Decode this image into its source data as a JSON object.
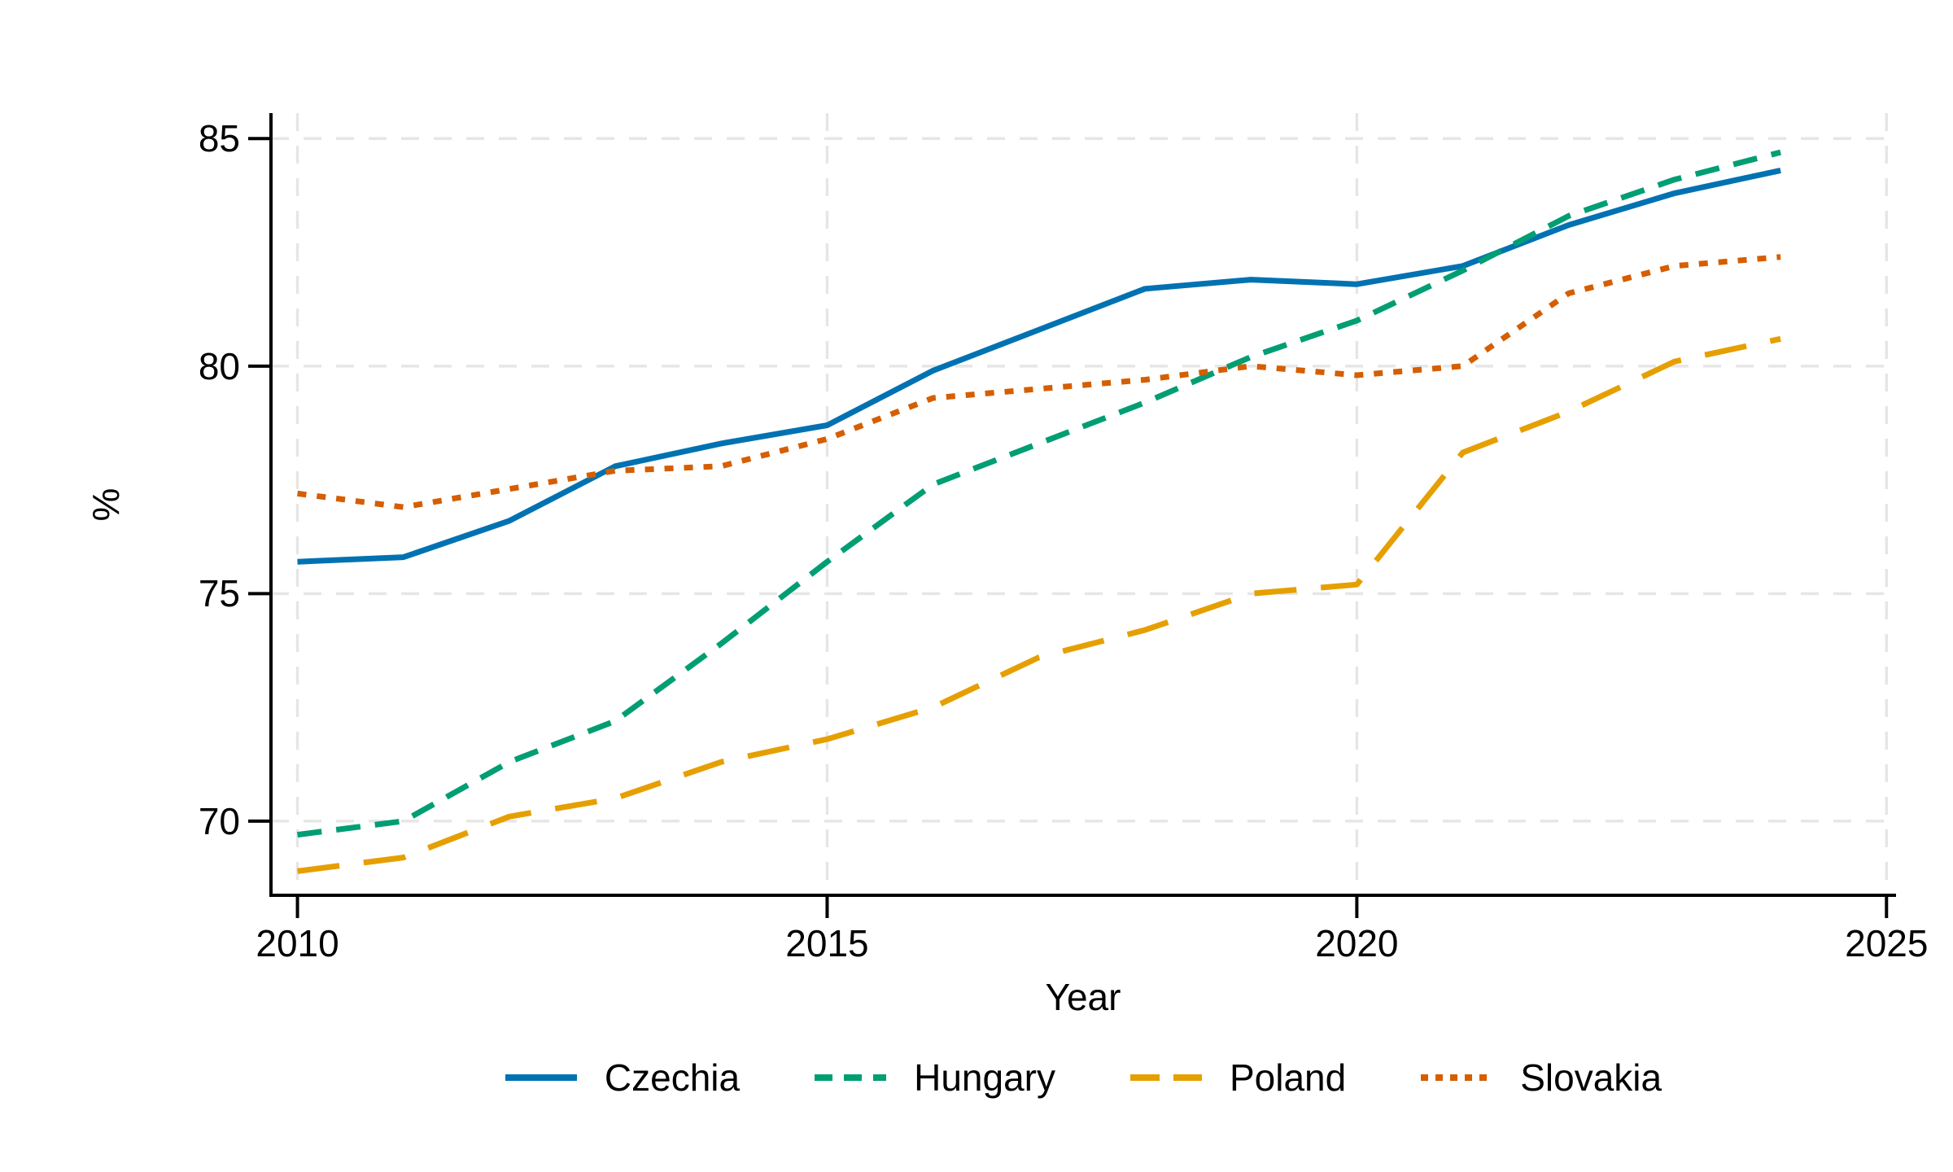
{
  "figure": {
    "background": "#ffffff",
    "axis_color": "#000000",
    "text_color": "#000000"
  },
  "chart_data": {
    "type": "line",
    "title": "",
    "xlabel": "Year",
    "ylabel": "%",
    "grid": {
      "show": true,
      "style": "dashed",
      "color": "#e6e6e6"
    },
    "legend_position": "bottom-center",
    "xlim": [
      2009.75,
      2025.09
    ],
    "ylim": [
      68.37,
      85.56
    ],
    "xticks": [
      {
        "value": 2010,
        "label": "2010"
      },
      {
        "value": 2015,
        "label": "2015"
      },
      {
        "value": 2020,
        "label": "2020"
      },
      {
        "value": 2025,
        "label": "2025"
      }
    ],
    "yticks": [
      {
        "value": 70,
        "label": "70"
      },
      {
        "value": 75,
        "label": "75"
      },
      {
        "value": 80,
        "label": "80"
      },
      {
        "value": 85,
        "label": "85"
      }
    ],
    "x": [
      2010,
      2011,
      2012,
      2013,
      2014,
      2015,
      2016,
      2017,
      2018,
      2019,
      2020,
      2021,
      2022,
      2023,
      2024
    ],
    "series": [
      {
        "name": "Czechia",
        "color": "#0072B2",
        "line_style": "solid",
        "values": [
          75.7,
          75.8,
          76.6,
          77.8,
          78.3,
          78.7,
          79.9,
          80.8,
          81.7,
          81.9,
          81.8,
          82.2,
          83.1,
          83.8,
          84.3
        ]
      },
      {
        "name": "Hungary",
        "color": "#009E73",
        "line_style": "dashed",
        "values": [
          69.7,
          70.0,
          71.3,
          72.2,
          73.9,
          75.7,
          77.4,
          78.3,
          79.2,
          80.2,
          81.0,
          82.1,
          83.3,
          84.1,
          84.7
        ]
      },
      {
        "name": "Poland",
        "color": "#E69F00",
        "line_style": "longdash",
        "values": [
          68.9,
          69.2,
          70.1,
          70.5,
          71.3,
          71.8,
          72.5,
          73.6,
          74.2,
          75.0,
          75.2,
          78.1,
          79.0,
          80.1,
          80.6
        ]
      },
      {
        "name": "Slovakia",
        "color": "#D55E00",
        "line_style": "dotted",
        "values": [
          77.2,
          76.9,
          77.3,
          77.7,
          77.8,
          78.4,
          79.3,
          79.5,
          79.7,
          80.0,
          79.8,
          80.0,
          81.6,
          82.2,
          82.4
        ]
      }
    ]
  }
}
